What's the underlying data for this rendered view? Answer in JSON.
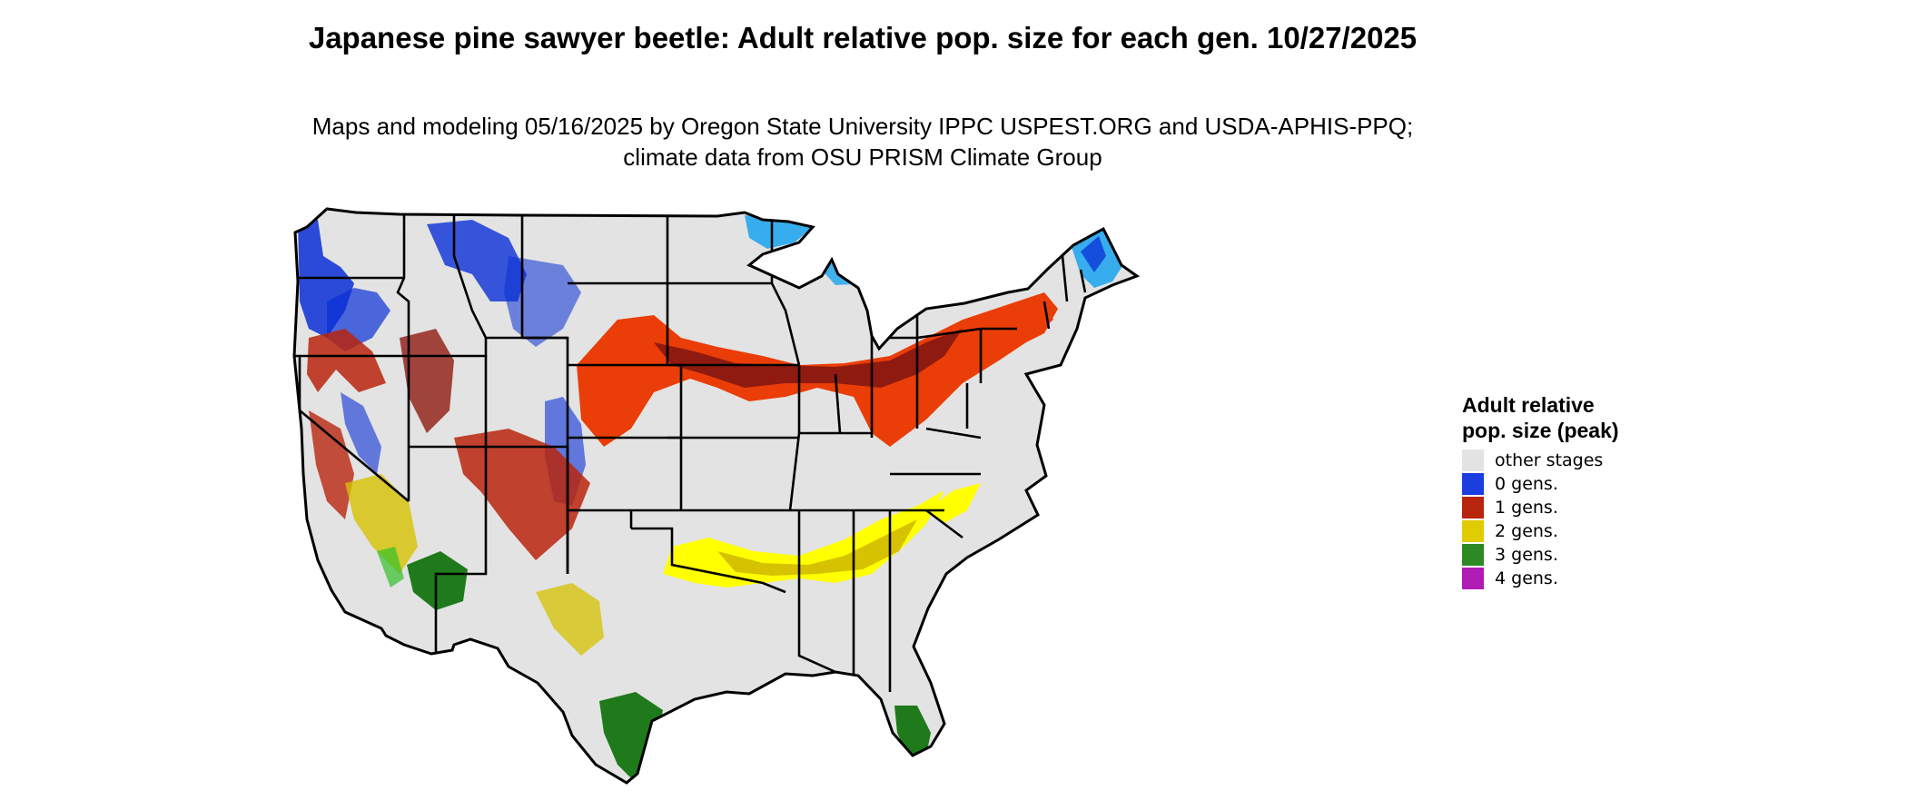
{
  "title": "Japanese pine sawyer beetle: Adult relative pop. size for each gen. 10/27/2025",
  "subtitle": "Maps and modeling 05/16/2025 by Oregon State University IPPC USPEST.ORG and USDA-APHIS-PPQ; climate data from OSU PRISM Climate Group",
  "legend": {
    "title": "Adult relative pop. size (peak)",
    "items": [
      {
        "label": "other stages",
        "color": "#e3e3e3"
      },
      {
        "label": "0 gens.",
        "color": "#1b3ee0"
      },
      {
        "label": "1 gens.",
        "color": "#b8250e"
      },
      {
        "label": "2 gens.",
        "color": "#e0cc00"
      },
      {
        "label": "3 gens.",
        "color": "#2b8a24"
      },
      {
        "label": "4 gens.",
        "color": "#b01ab5"
      }
    ]
  },
  "map": {
    "region": "Contiguous United States",
    "fill_other": "#e3e3e3",
    "colors": {
      "gen0_dark": "#0a2fd6",
      "gen0_light": "#19a3ef",
      "gen1_dark": "#8f1a10",
      "gen1_light": "#ea3d07",
      "gen2_dark": "#d6c200",
      "gen2_light": "#ffff00",
      "gen3_dark": "#1e7a1a",
      "gen3_light": "#33c02a"
    }
  }
}
